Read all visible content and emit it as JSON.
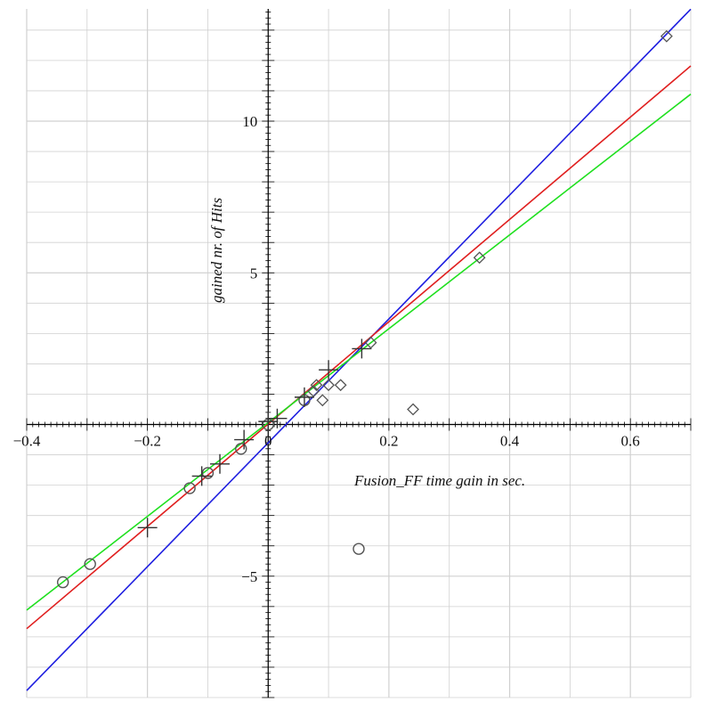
{
  "chart_data": {
    "type": "scatter",
    "title": "",
    "xlabel": "Fusion_FF  time gain in sec.",
    "ylabel": "gained nr. of Hits",
    "xlim": [
      -0.4,
      0.7
    ],
    "ylim": [
      -9,
      13.7
    ],
    "grid": true,
    "x_ticks": [
      -0.4,
      -0.2,
      0,
      0.2,
      0.4,
      0.6
    ],
    "x_tick_labels": [
      "−0.4",
      "−0.2",
      "0",
      "0.2",
      "0.4",
      "0.6"
    ],
    "y_ticks": [
      -5,
      5,
      10
    ],
    "y_tick_labels": [
      "−5",
      "5",
      "10"
    ],
    "series": [
      {
        "marker": "circle",
        "points": [
          [
            -0.34,
            -5.2
          ],
          [
            -0.295,
            -4.6
          ],
          [
            -0.13,
            -2.1
          ],
          [
            -0.1,
            -1.6
          ],
          [
            -0.045,
            -0.8
          ],
          [
            0.0,
            0.0
          ],
          [
            0.06,
            0.8
          ],
          [
            0.15,
            -4.1
          ]
        ]
      },
      {
        "marker": "cross",
        "points": [
          [
            -0.2,
            -3.4
          ],
          [
            -0.11,
            -1.7
          ],
          [
            -0.08,
            -1.3
          ],
          [
            -0.04,
            -0.5
          ],
          [
            0.0,
            0.1
          ],
          [
            0.015,
            0.2
          ],
          [
            0.06,
            0.9
          ],
          [
            0.1,
            1.8
          ],
          [
            0.155,
            2.5
          ]
        ]
      },
      {
        "marker": "diamond",
        "points": [
          [
            0.075,
            1.1
          ],
          [
            0.08,
            1.3
          ],
          [
            0.09,
            0.8
          ],
          [
            0.1,
            1.3
          ],
          [
            0.12,
            1.3
          ],
          [
            0.17,
            2.7
          ],
          [
            0.24,
            0.5
          ],
          [
            0.35,
            5.5
          ],
          [
            0.66,
            12.8
          ]
        ]
      }
    ],
    "lines": [
      {
        "color": "#1f1fe0",
        "x": [
          -0.4,
          0.7
        ],
        "y": [
          -8.77,
          13.69
        ]
      },
      {
        "color": "#e01f1f",
        "x": [
          -0.4,
          0.7
        ],
        "y": [
          -6.73,
          11.82
        ]
      },
      {
        "color": "#1fe01f",
        "x": [
          -0.4,
          0.7
        ],
        "y": [
          -6.12,
          10.89
        ]
      }
    ]
  },
  "colors": {
    "grid": "#d0d0d0",
    "axis": "#000000",
    "marker": "#555555"
  }
}
